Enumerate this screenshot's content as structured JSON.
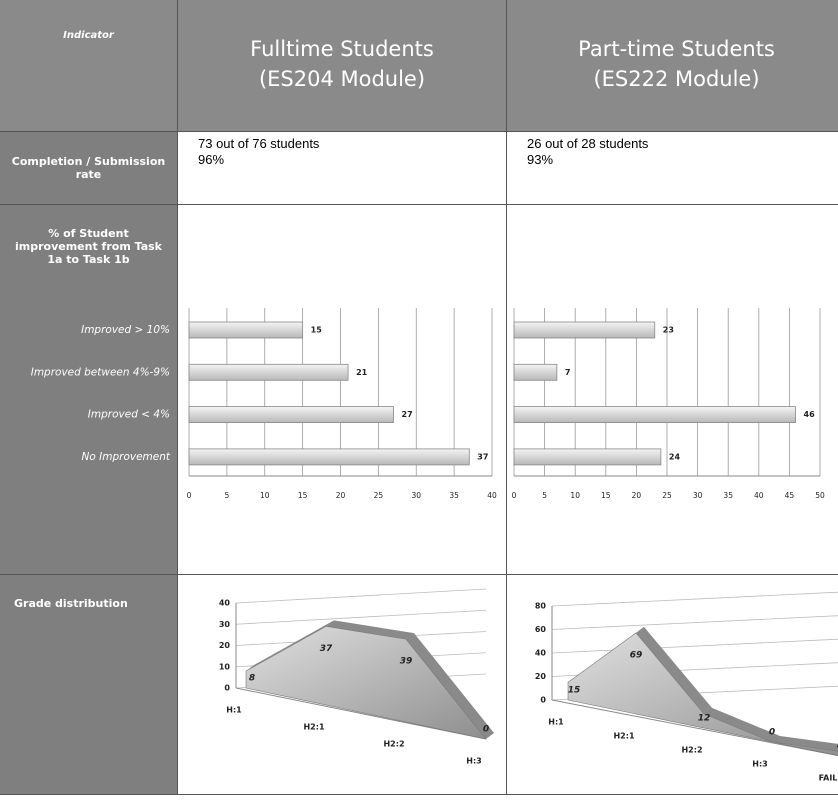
{
  "header": {
    "indicator": "Indicator",
    "fulltime": [
      "Fulltime Students",
      "(ES204 Module)"
    ],
    "parttime": [
      "Part-time Students",
      "(ES222 Module)"
    ]
  },
  "completion": {
    "label": "Completion / Submission rate",
    "fulltime": [
      "73 out of 76 students",
      "96%"
    ],
    "parttime": [
      "26 out of 28 students",
      "93%"
    ]
  },
  "improvement": {
    "label": "% of Student improvement from Task 1a to Task 1b",
    "categories": [
      "Improved > 10%",
      "Improved between 4%-9%",
      "Improved < 4%",
      "No Improvement"
    ],
    "fulltime_chart": {
      "type": "bar",
      "values": [
        15,
        21,
        27,
        37
      ],
      "xlim": [
        0,
        40
      ],
      "xticks": [
        0,
        5,
        10,
        15,
        20,
        25,
        30,
        35,
        40
      ]
    },
    "parttime_chart": {
      "type": "bar",
      "values": [
        23,
        7,
        46,
        24
      ],
      "xlim": [
        0,
        50
      ],
      "xticks": [
        0,
        5,
        10,
        15,
        20,
        25,
        30,
        35,
        40,
        45,
        50
      ]
    }
  },
  "grade": {
    "label": "Grade distribution",
    "fulltime_chart": {
      "type": "area",
      "categories": [
        "H:1",
        "H2:1",
        "H2:2",
        "H:3"
      ],
      "values": [
        8,
        37,
        39,
        0
      ],
      "ylim": [
        0,
        40
      ],
      "yticks": [
        0,
        10,
        20,
        30,
        40
      ]
    },
    "parttime_chart": {
      "type": "area",
      "categories": [
        "H:1",
        "H2:1",
        "H2:2",
        "H:3",
        "FAIL"
      ],
      "values": [
        15,
        69,
        12,
        0,
        4
      ],
      "ylim": [
        0,
        80
      ],
      "yticks": [
        0,
        20,
        40,
        60,
        80
      ]
    }
  }
}
